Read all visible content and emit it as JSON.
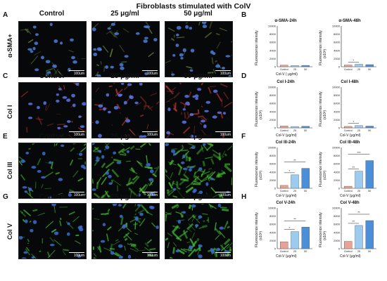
{
  "title": "Fibroblasts stimulated  with ColV",
  "column_headers": [
    "Control",
    "25 μg/ml",
    "50 μg/ml"
  ],
  "scale_bar_label": "100um",
  "rows": [
    {
      "letter": "A",
      "chart_letter": "B",
      "label": "α-SMA+",
      "tint": "#6c8a3a",
      "density": 0.15,
      "nuclei": "#4a7dd8"
    },
    {
      "letter": "C",
      "chart_letter": "D",
      "label": "Col I",
      "tint": "#c2352a",
      "density": 0.35,
      "nuclei": "#5a74e8"
    },
    {
      "letter": "E",
      "chart_letter": "F",
      "label": "Col III",
      "tint": "#43c02a",
      "density": 0.75,
      "nuclei": "#3a6cd0"
    },
    {
      "letter": "G",
      "chart_letter": "H",
      "label": "Col V",
      "tint": "#3fbf33",
      "density": 0.7,
      "nuclei": "#3a6cd0"
    }
  ],
  "colors": {
    "control": "#e8a395",
    "dose25": "#9ccbf0",
    "dose50": "#4a8fd8"
  },
  "chart_data": [
    {
      "type": "bar",
      "title": "α-SMA-24h",
      "xlabel": "Col-V ( μg/ml)",
      "ylabel": "Fluorescence intensity",
      "ylim": [
        0,
        10000
      ],
      "yticks": [
        "0",
        "2000",
        "4000",
        "6000",
        "8000",
        "10000"
      ],
      "categories": [
        "Control",
        "25",
        "50"
      ],
      "values": [
        380,
        290,
        330
      ],
      "sig": []
    },
    {
      "type": "bar",
      "title": "α-SMA-48h",
      "xlabel": "",
      "ylabel": "Fluorescence intensity",
      "yunit": "(x10³)",
      "ylim": [
        0,
        10000
      ],
      "yticks": [
        "0",
        "2000",
        "4000",
        "6000",
        "8000",
        "10000"
      ],
      "categories": [
        "Control",
        "25",
        "50"
      ],
      "values": [
        420,
        600,
        520
      ],
      "sig": [
        {
          "from": 0,
          "to": 1,
          "label": "*"
        }
      ]
    },
    {
      "type": "bar",
      "title": "Col I-24h",
      "xlabel": "Col-V (μg/ml)",
      "ylabel": "Fluorescence intensity",
      "yunit": "(x10³)",
      "ylim": [
        0,
        10000
      ],
      "yticks": [
        "0",
        "2000",
        "4000",
        "6000",
        "8000",
        "10000"
      ],
      "categories": [
        "Control",
        "25",
        "50"
      ],
      "values": [
        450,
        330,
        380
      ],
      "sig": []
    },
    {
      "type": "bar",
      "title": "Col I-48h",
      "xlabel": "Col-V (μg/ml)",
      "ylabel": "Fluorescence intensity",
      "yunit": "(x10³)",
      "ylim": [
        0,
        10000
      ],
      "yticks": [
        "0",
        "2000",
        "4000",
        "6000",
        "8000",
        "10000"
      ],
      "categories": [
        "Control",
        "25",
        "50"
      ],
      "values": [
        350,
        560,
        430
      ],
      "sig": [
        {
          "from": 0,
          "to": 1,
          "label": "*"
        }
      ]
    },
    {
      "type": "bar",
      "title": "Col III-24h",
      "xlabel": "Col-V (μg/ml)",
      "ylabel": "Fluorescence intensity",
      "yunit": "(x10³)",
      "ylim": [
        0,
        10000
      ],
      "yticks": [
        "0",
        "2000",
        "4000",
        "6000",
        "8000",
        "10000"
      ],
      "categories": [
        "Control",
        "25",
        "50"
      ],
      "values": [
        700,
        3300,
        4900
      ],
      "sig": [
        {
          "from": 0,
          "to": 1,
          "label": "*"
        },
        {
          "from": 0,
          "to": 2,
          "label": "**"
        }
      ]
    },
    {
      "type": "bar",
      "title": "Col III-48h",
      "xlabel": "Col-V (μg/ml)",
      "ylabel": "Fluorescence intensity",
      "yunit": "(x10³)",
      "ylim": [
        0,
        10000
      ],
      "yticks": [
        "0",
        "2000",
        "4000",
        "6000",
        "8000",
        "10000"
      ],
      "categories": [
        "Control",
        "25",
        "50"
      ],
      "values": [
        500,
        4200,
        6800
      ],
      "sig": [
        {
          "from": 0,
          "to": 1,
          "label": "**"
        },
        {
          "from": 0,
          "to": 2,
          "label": "***"
        }
      ]
    },
    {
      "type": "bar",
      "title": "Col V-24h",
      "xlabel": "Col-V (μg/ml)",
      "ylabel": "Fluorescence intensity",
      "yunit": "(x10³)",
      "ylim": [
        0,
        10000
      ],
      "yticks": [
        "0",
        "2000",
        "4000",
        "6000",
        "8000",
        "10000"
      ],
      "categories": [
        "Control",
        "25",
        "50"
      ],
      "values": [
        1700,
        4200,
        5300
      ],
      "sig": [
        {
          "from": 0,
          "to": 1,
          "label": "*"
        },
        {
          "from": 0,
          "to": 2,
          "label": "**"
        }
      ]
    },
    {
      "type": "bar",
      "title": "Col V-48h",
      "xlabel": "Col-V (μg/ml)",
      "ylabel": "Fluorescence intensity",
      "yunit": "(x10³)",
      "ylim": [
        0,
        10000
      ],
      "yticks": [
        "0",
        "2000",
        "4000",
        "6000",
        "8000",
        "10000"
      ],
      "categories": [
        "Control",
        "25",
        "50"
      ],
      "values": [
        1800,
        5700,
        6900
      ],
      "sig": [
        {
          "from": 0,
          "to": 1,
          "label": "**"
        },
        {
          "from": 0,
          "to": 2,
          "label": "**"
        }
      ]
    }
  ]
}
